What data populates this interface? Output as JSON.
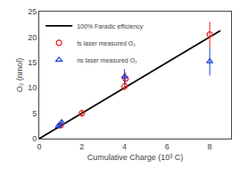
{
  "chart_data": {
    "type": "scatter",
    "xlabel": "Cumulative Charge (10³ C)",
    "ylabel": "O₂ (nmol)",
    "xlim": [
      0,
      9
    ],
    "ylim": [
      0,
      25
    ],
    "xticks": [
      0,
      2,
      4,
      6,
      8
    ],
    "yticks": [
      0,
      5,
      10,
      15,
      20,
      25
    ],
    "grid": false,
    "legend": "upper left",
    "series": [
      {
        "name": "100% Faradic efficiency",
        "type": "line",
        "line_style": "solid",
        "color": "#000000",
        "x": [
          0,
          8.5
        ],
        "values": [
          0,
          21.25
        ]
      },
      {
        "name": "fs laser measured O₂",
        "type": "scatter",
        "marker": "circle-open",
        "color": "#e8201a",
        "x": [
          1.0,
          2.0,
          4.0,
          4.05,
          8.0
        ],
        "values": [
          2.6,
          5.0,
          10.3,
          11.8,
          20.5
        ],
        "yerr": [
          0.3,
          0.7,
          0.8,
          1.2,
          2.5
        ]
      },
      {
        "name": "ns laser measured O₂",
        "type": "scatter",
        "marker": "triangle-up-open",
        "color": "#1a3ed4",
        "x": [
          0.9,
          1.05,
          4.0,
          8.0
        ],
        "values": [
          2.5,
          3.2,
          12.2,
          15.2
        ],
        "yerr": [
          0.5,
          0.5,
          1.5,
          2.8
        ]
      }
    ]
  }
}
